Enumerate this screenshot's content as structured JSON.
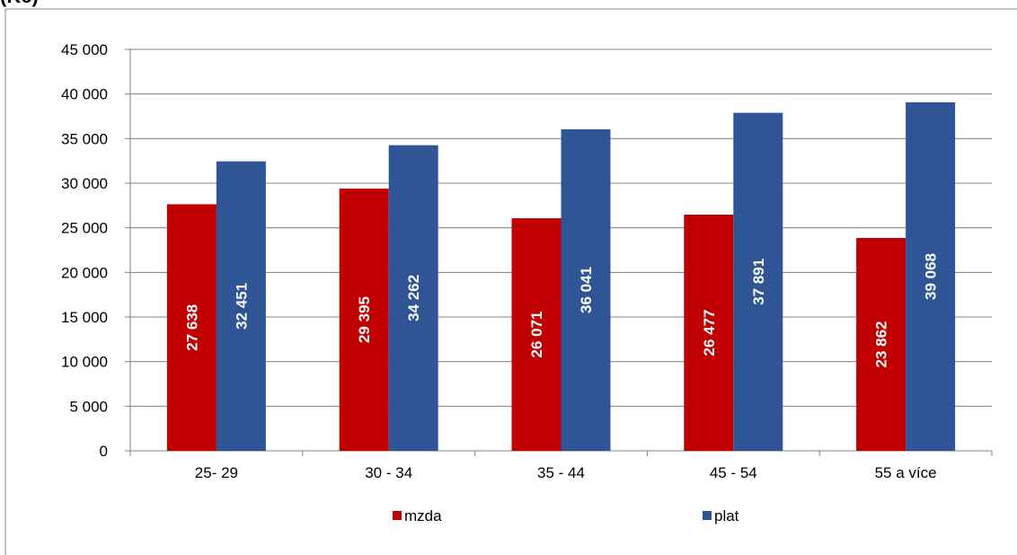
{
  "chart_data": {
    "type": "bar",
    "title": "(Kč)",
    "categories": [
      "25- 29",
      "30 - 34",
      "35 - 44",
      "45 - 54",
      "55 a více"
    ],
    "series": [
      {
        "name": "mzda",
        "color": "#c00000",
        "values": [
          27638,
          29395,
          26071,
          26477,
          23862
        ],
        "labels": [
          "27 638",
          "29 395",
          "26 071",
          "26 477",
          "23 862"
        ]
      },
      {
        "name": "plat",
        "color": "#2f5597",
        "values": [
          32451,
          34262,
          36041,
          37891,
          39068
        ],
        "labels": [
          "32 451",
          "34 262",
          "36 041",
          "37 891",
          "39 068"
        ]
      }
    ],
    "ylim": [
      0,
      45000
    ],
    "yticks": [
      0,
      5000,
      10000,
      15000,
      20000,
      25000,
      30000,
      35000,
      40000,
      45000
    ],
    "ytick_labels": [
      "0",
      "5 000",
      "10 000",
      "15 000",
      "20 000",
      "25 000",
      "30 000",
      "35 000",
      "40 000",
      "45 000"
    ],
    "grid": true,
    "legend_position": "bottom"
  }
}
